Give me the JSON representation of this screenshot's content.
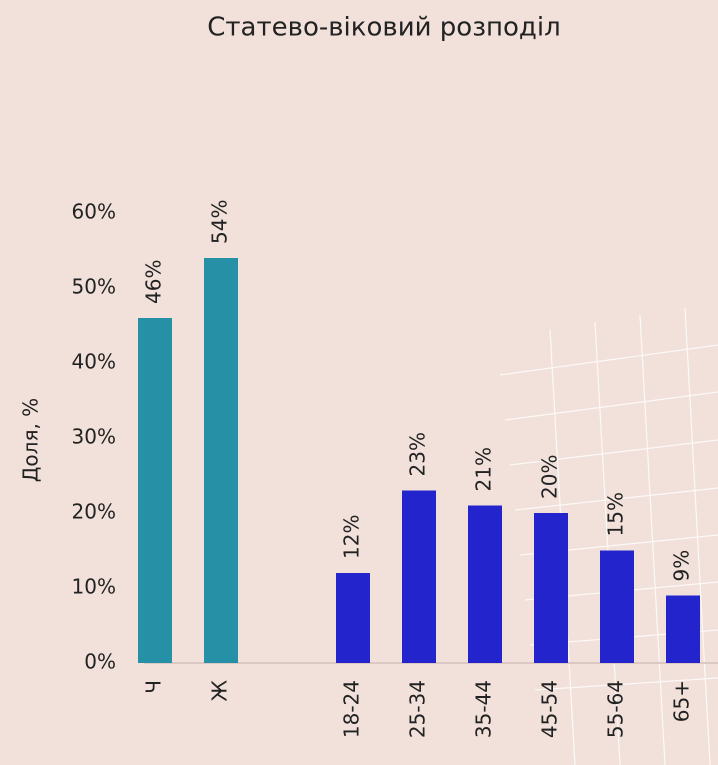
{
  "chart_data": {
    "type": "bar",
    "title": "Статево-віковий розподіл",
    "y_label": "Доля, %",
    "categories": [
      "Ч",
      "Ж",
      null,
      "18-24",
      "25-34",
      "35-44",
      "45-54",
      "55-64",
      "65+"
    ],
    "series": [
      {
        "color": "#2690a6",
        "values": [
          46,
          54,
          null,
          null,
          null,
          null,
          null,
          null,
          null
        ],
        "value_labels": [
          "46%",
          "54%",
          null,
          null,
          null,
          null,
          null,
          null,
          null
        ]
      },
      {
        "color": "#2424cc",
        "values": [
          null,
          null,
          null,
          12,
          23,
          21,
          20,
          15,
          9
        ],
        "value_labels": [
          null,
          null,
          null,
          "12%",
          "23%",
          "21%",
          "20%",
          "15%",
          "9%"
        ]
      }
    ],
    "ylim": [
      0,
      60
    ],
    "yticks": [
      {
        "value": 0,
        "label": "0%"
      },
      {
        "value": 10,
        "label": "10%"
      },
      {
        "value": 20,
        "label": "20%"
      },
      {
        "value": 30,
        "label": "30%"
      },
      {
        "value": 40,
        "label": "40%"
      },
      {
        "value": 50,
        "label": "50%"
      },
      {
        "value": 60,
        "label": "60%"
      }
    ]
  }
}
